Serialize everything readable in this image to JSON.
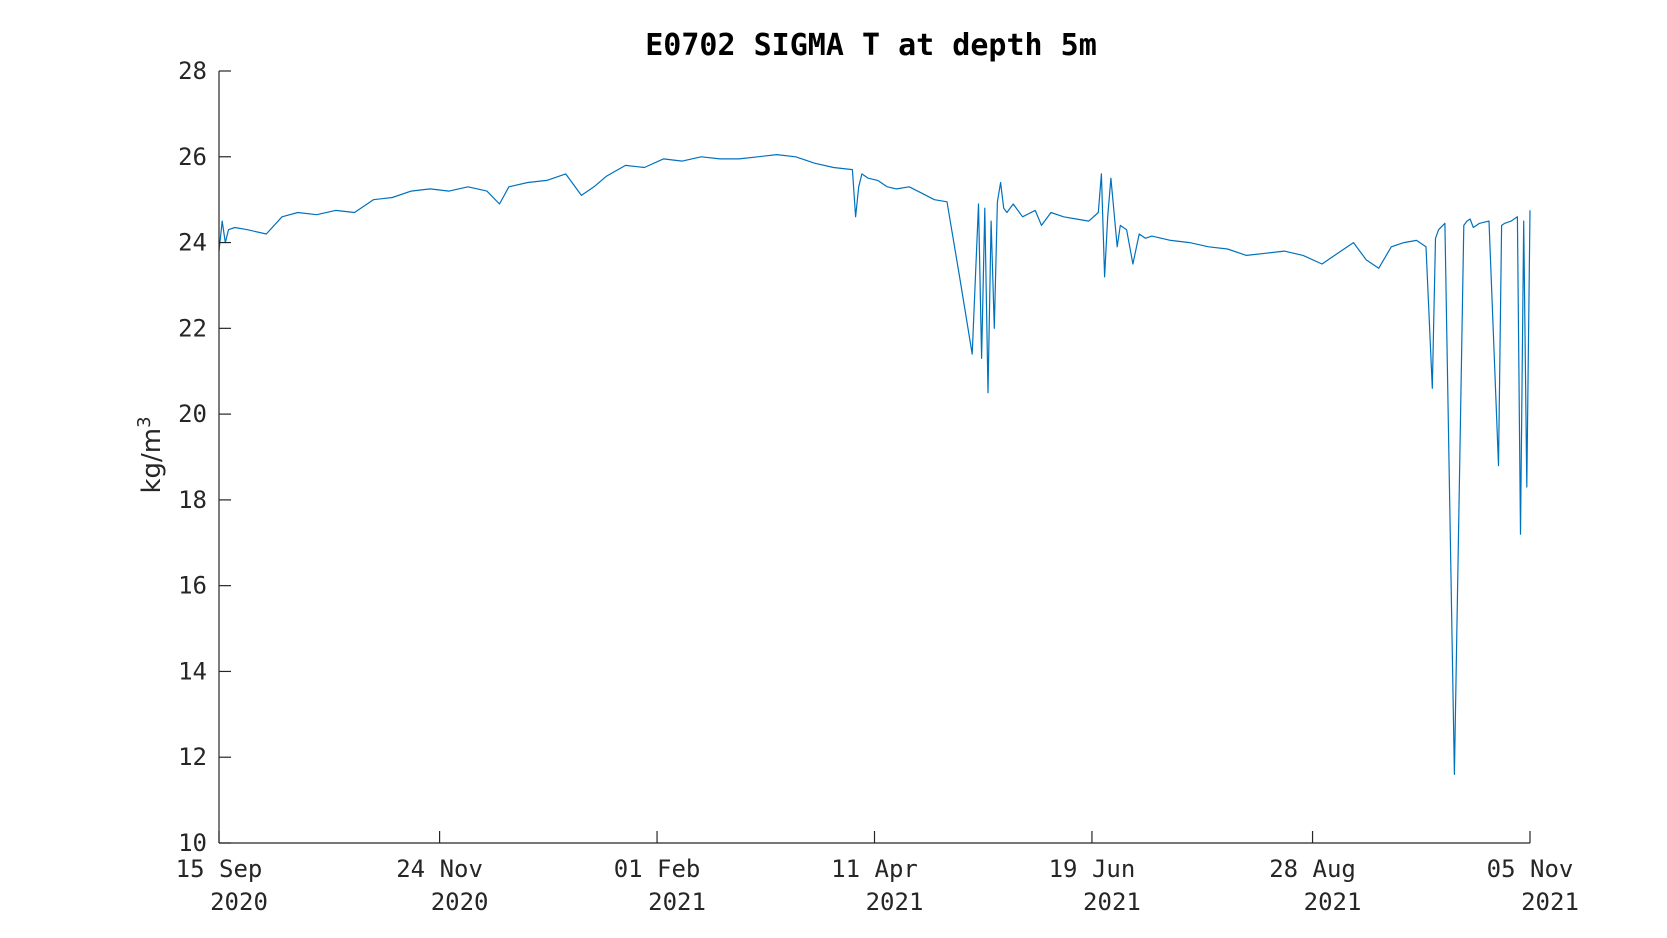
{
  "chart_data": {
    "type": "line",
    "title": "E0702 SIGMA T at depth 5m",
    "ylabel": "kg/m",
    "ylabel_superscript": "3",
    "ylim": [
      10,
      28
    ],
    "yticks": [
      10,
      12,
      14,
      16,
      18,
      20,
      22,
      24,
      26,
      28
    ],
    "xlim": [
      "2020-09-15",
      "2021-11-05"
    ],
    "xticks": [
      {
        "date": "2020-09-15",
        "line1": "15 Sep",
        "line2": "2020"
      },
      {
        "date": "2020-11-24",
        "line1": "24 Nov",
        "line2": "2020"
      },
      {
        "date": "2021-02-01",
        "line1": "01 Feb",
        "line2": "2021"
      },
      {
        "date": "2021-04-11",
        "line1": "11 Apr",
        "line2": "2021"
      },
      {
        "date": "2021-06-19",
        "line1": "19 Jun",
        "line2": "2021"
      },
      {
        "date": "2021-08-28",
        "line1": "28 Aug",
        "line2": "2021"
      },
      {
        "date": "2021-11-05",
        "line1": "05 Nov",
        "line2": "2021"
      }
    ],
    "grid": false,
    "color": "#0072BD",
    "series": [
      {
        "x": [
          "2020-09-15",
          "2020-09-16",
          "2020-09-17",
          "2020-09-18",
          "2020-09-20",
          "2020-09-24",
          "2020-09-30",
          "2020-10-05",
          "2020-10-10",
          "2020-10-16",
          "2020-10-22",
          "2020-10-28",
          "2020-11-03",
          "2020-11-09",
          "2020-11-15",
          "2020-11-21",
          "2020-11-27",
          "2020-12-03",
          "2020-12-09",
          "2020-12-13",
          "2020-12-16",
          "2020-12-22",
          "2020-12-28",
          "2021-01-03",
          "2021-01-08",
          "2021-01-12",
          "2021-01-16",
          "2021-01-22",
          "2021-01-28",
          "2021-02-03",
          "2021-02-09",
          "2021-02-15",
          "2021-02-21",
          "2021-02-27",
          "2021-03-05",
          "2021-03-11",
          "2021-03-17",
          "2021-03-23",
          "2021-03-29",
          "2021-04-04",
          "2021-04-05",
          "2021-04-06",
          "2021-04-07",
          "2021-04-09",
          "2021-04-12",
          "2021-04-15",
          "2021-04-18",
          "2021-04-22",
          "2021-04-26",
          "2021-04-30",
          "2021-05-04",
          "2021-05-08",
          "2021-05-12",
          "2021-05-14",
          "2021-05-15",
          "2021-05-16",
          "2021-05-17",
          "2021-05-18",
          "2021-05-19",
          "2021-05-20",
          "2021-05-21",
          "2021-05-22",
          "2021-05-23",
          "2021-05-25",
          "2021-05-28",
          "2021-06-01",
          "2021-06-03",
          "2021-06-06",
          "2021-06-10",
          "2021-06-14",
          "2021-06-18",
          "2021-06-21",
          "2021-06-22",
          "2021-06-23",
          "2021-06-24",
          "2021-06-25",
          "2021-06-27",
          "2021-06-28",
          "2021-06-30",
          "2021-07-02",
          "2021-07-04",
          "2021-07-06",
          "2021-07-08",
          "2021-07-14",
          "2021-07-20",
          "2021-07-26",
          "2021-08-01",
          "2021-08-07",
          "2021-08-13",
          "2021-08-19",
          "2021-08-25",
          "2021-08-31",
          "2021-09-06",
          "2021-09-10",
          "2021-09-14",
          "2021-09-18",
          "2021-09-22",
          "2021-09-26",
          "2021-09-30",
          "2021-10-03",
          "2021-10-05",
          "2021-10-06",
          "2021-10-07",
          "2021-10-09",
          "2021-10-12",
          "2021-10-15",
          "2021-10-16",
          "2021-10-17",
          "2021-10-18",
          "2021-10-20",
          "2021-10-23",
          "2021-10-26",
          "2021-10-27",
          "2021-10-28",
          "2021-10-30",
          "2021-11-01",
          "2021-11-02",
          "2021-11-03",
          "2021-11-04",
          "2021-11-05"
        ],
        "y": [
          23.8,
          24.5,
          24.0,
          24.3,
          24.35,
          24.3,
          24.2,
          24.6,
          24.7,
          24.65,
          24.75,
          24.7,
          25.0,
          25.05,
          25.2,
          25.25,
          25.2,
          25.3,
          25.2,
          24.9,
          25.3,
          25.4,
          25.45,
          25.6,
          25.1,
          25.3,
          25.55,
          25.8,
          25.75,
          25.95,
          25.9,
          26.0,
          25.95,
          25.95,
          26.0,
          26.05,
          26.0,
          25.85,
          25.75,
          25.7,
          24.6,
          25.3,
          25.6,
          25.5,
          25.45,
          25.3,
          25.25,
          25.3,
          25.15,
          25.0,
          24.95,
          23.2,
          21.4,
          24.9,
          21.3,
          24.8,
          20.5,
          24.5,
          22.0,
          24.95,
          25.4,
          24.8,
          24.7,
          24.9,
          24.6,
          24.75,
          24.4,
          24.7,
          24.6,
          24.55,
          24.5,
          24.7,
          25.6,
          23.2,
          24.6,
          25.5,
          23.9,
          24.4,
          24.3,
          23.5,
          24.2,
          24.1,
          24.15,
          24.05,
          24.0,
          23.9,
          23.85,
          23.7,
          23.75,
          23.8,
          23.7,
          23.5,
          23.8,
          24.0,
          23.6,
          23.4,
          23.9,
          24.0,
          24.05,
          23.9,
          20.6,
          24.1,
          24.3,
          24.45,
          11.6,
          24.4,
          24.5,
          24.55,
          24.35,
          24.45,
          24.5,
          18.8,
          24.4,
          24.45,
          24.5,
          24.6,
          17.2,
          24.5,
          18.3,
          24.75
        ]
      }
    ]
  }
}
